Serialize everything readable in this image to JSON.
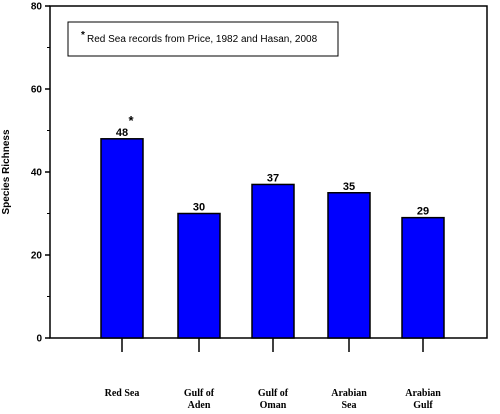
{
  "chart_data": {
    "type": "bar",
    "categories": [
      [
        "Red Sea"
      ],
      [
        "Gulf of",
        "Aden"
      ],
      [
        "Gulf of",
        "Oman"
      ],
      [
        "Arabian",
        "Sea"
      ],
      [
        "Arabian",
        "Gulf"
      ]
    ],
    "values": [
      48,
      30,
      37,
      35,
      29
    ],
    "data_labels": [
      "48",
      "30",
      "37",
      "35",
      "29"
    ],
    "ylabel": "Species Richness",
    "xlabel": "",
    "ylim": [
      0,
      80
    ],
    "yticks": [
      0,
      20,
      40,
      60,
      80
    ],
    "grid": false,
    "bar_color": "#0000ff",
    "annotation": {
      "marker": "*",
      "category_index": 0
    },
    "legend": {
      "marker": "*",
      "text": "Red Sea records from Price, 1982 and Hasan, 2008",
      "placement": "top-left"
    }
  }
}
